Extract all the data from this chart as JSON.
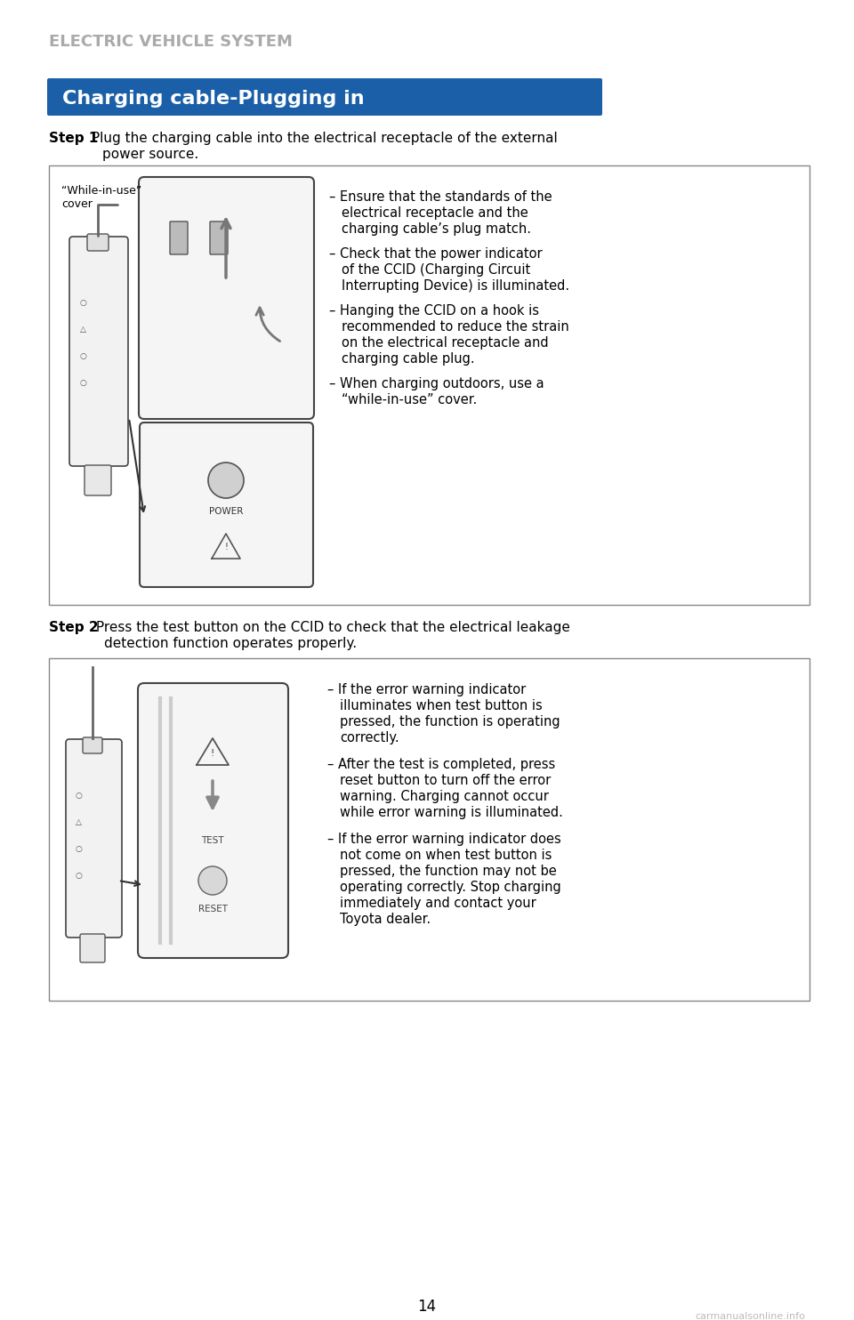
{
  "page_bg": "#ffffff",
  "header_text": "ELECTRIC VEHICLE SYSTEM",
  "header_color": "#aaaaaa",
  "header_font_size": 13,
  "title_bg": "#1a5fa8",
  "title_text": "Charging cable-Plugging in",
  "title_text_color": "#ffffff",
  "title_font_size": 16,
  "step1_bold": "Step 1",
  "step1_rest": " Plug the charging cable into the electrical receptacle of the external",
  "step1_rest2": "power source.",
  "step2_bold": "Step 2",
  "step2_rest": " Press the test button on the CCID to check that the electrical leakage",
  "step2_rest2": "detection function operates properly.",
  "box1_bullets": [
    "Ensure that the standards of the\nelectrical receptacle and the\ncharging cable’s plug match.",
    "Check that the power indicator\nof the CCID (Charging Circuit\nInterrupting Device) is illuminated.",
    "Hanging the CCID on a hook is\nrecommended to reduce the strain\non the electrical receptacle and\ncharging cable plug.",
    "When charging outdoors, use a\n“while-in-use” cover."
  ],
  "box2_bullets": [
    "If the error warning indicator\nilluminates when test button is\npressed, the function is operating\ncorrectly.",
    "After the test is completed, press\nreset button to turn off the error\nwarning. Charging cannot occur\nwhile error warning is illuminated.",
    "If the error warning indicator does\nnot come on when test button is\npressed, the function may not be\noperating correctly. Stop charging\nimmediately and contact your\nToyota dealer."
  ],
  "page_number": "14",
  "watermark": "carmanualsonline.info",
  "body_font_size": 11,
  "bullet_font_size": 10.5,
  "box_border_color": "#888888",
  "while_in_use_label": "“While-in-use”\ncover"
}
